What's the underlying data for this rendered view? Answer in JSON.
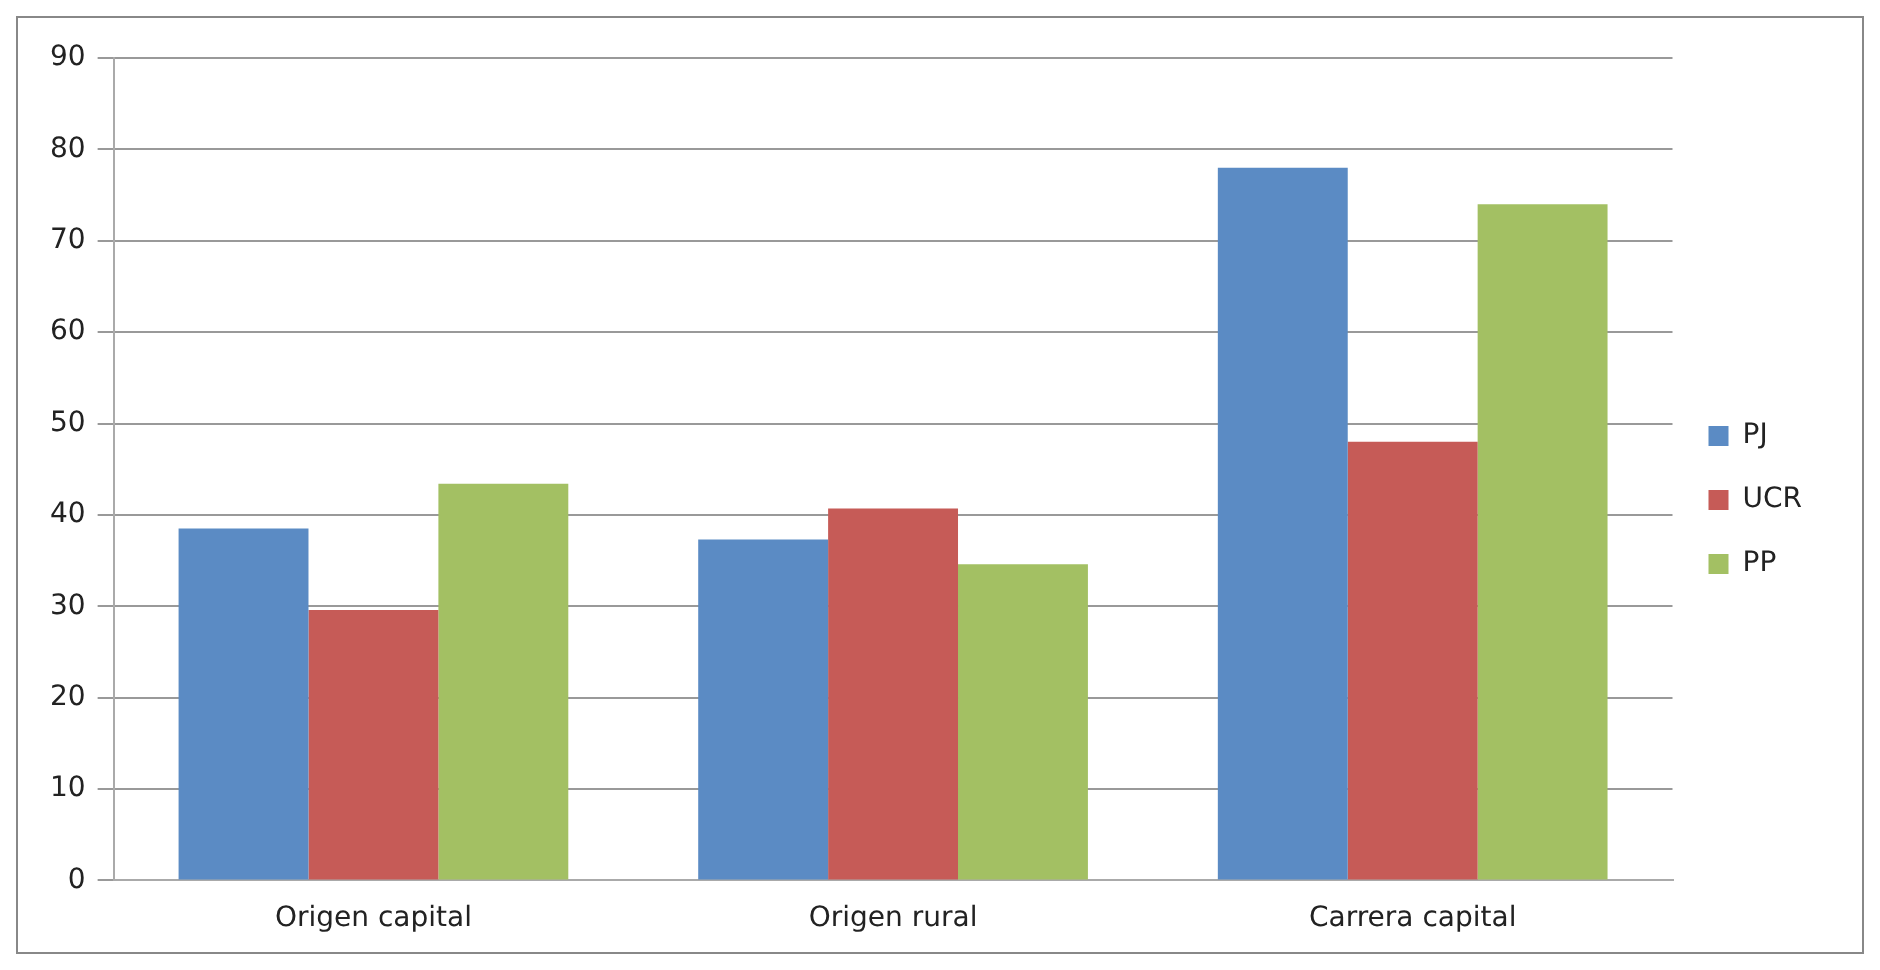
{
  "chart_data": {
    "type": "bar",
    "categories": [
      "Origen capital",
      "Origen rural",
      "Carrera capital"
    ],
    "series": [
      {
        "name": "PJ",
        "color": "#5b8bc4",
        "values": [
          38.5,
          37.3,
          78
        ]
      },
      {
        "name": "UCR",
        "color": "#c65b57",
        "values": [
          29.6,
          40.7,
          48
        ]
      },
      {
        "name": "PP",
        "color": "#a3c063",
        "values": [
          43.4,
          34.6,
          74
        ]
      }
    ],
    "ylim": [
      0,
      90
    ],
    "yticks": [
      0,
      10,
      20,
      30,
      40,
      50,
      60,
      70,
      80,
      90
    ],
    "grid": "y",
    "legend": "right"
  }
}
